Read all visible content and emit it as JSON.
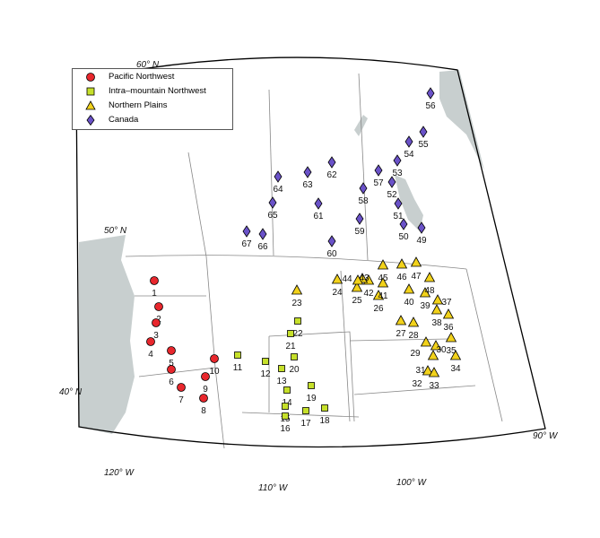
{
  "legend": {
    "items": [
      {
        "label": "Pacific Northwest",
        "marker": "circle",
        "color": "#e8272d"
      },
      {
        "label": "Intra–mountain Northwest",
        "marker": "square",
        "color": "#c6e02a"
      },
      {
        "label": "Northern Plains",
        "marker": "triangle",
        "color": "#f2d21b"
      },
      {
        "label": "Canada",
        "marker": "diamond",
        "color": "#6a52c8"
      }
    ]
  },
  "axis_labels": {
    "lat60": "60° N",
    "lat50": "50° N",
    "lat40": "40° N",
    "lon120": "120° W",
    "lon110": "110° W",
    "lon100": "100° W",
    "lon90": "90° W"
  },
  "sites": {
    "pacific": [
      "1",
      "2",
      "3",
      "4",
      "5",
      "6",
      "7",
      "8",
      "9",
      "10"
    ],
    "intra": [
      "11",
      "12",
      "13",
      "14",
      "15",
      "16",
      "17",
      "18",
      "19",
      "20",
      "21",
      "22"
    ],
    "plains": [
      "23",
      "24",
      "25",
      "26",
      "27",
      "28",
      "29",
      "30",
      "31",
      "32",
      "33",
      "34",
      "35",
      "36",
      "37",
      "38",
      "39",
      "40",
      "41",
      "42",
      "43",
      "44",
      "45",
      "46",
      "47",
      "48"
    ],
    "canada": [
      "49",
      "50",
      "51",
      "52",
      "53",
      "54",
      "55",
      "56",
      "57",
      "58",
      "59",
      "60",
      "61",
      "62",
      "63",
      "64",
      "65",
      "66",
      "67"
    ]
  },
  "colors": {
    "water": "#c8cfcf",
    "border": "#777777",
    "frame": "#000000"
  }
}
